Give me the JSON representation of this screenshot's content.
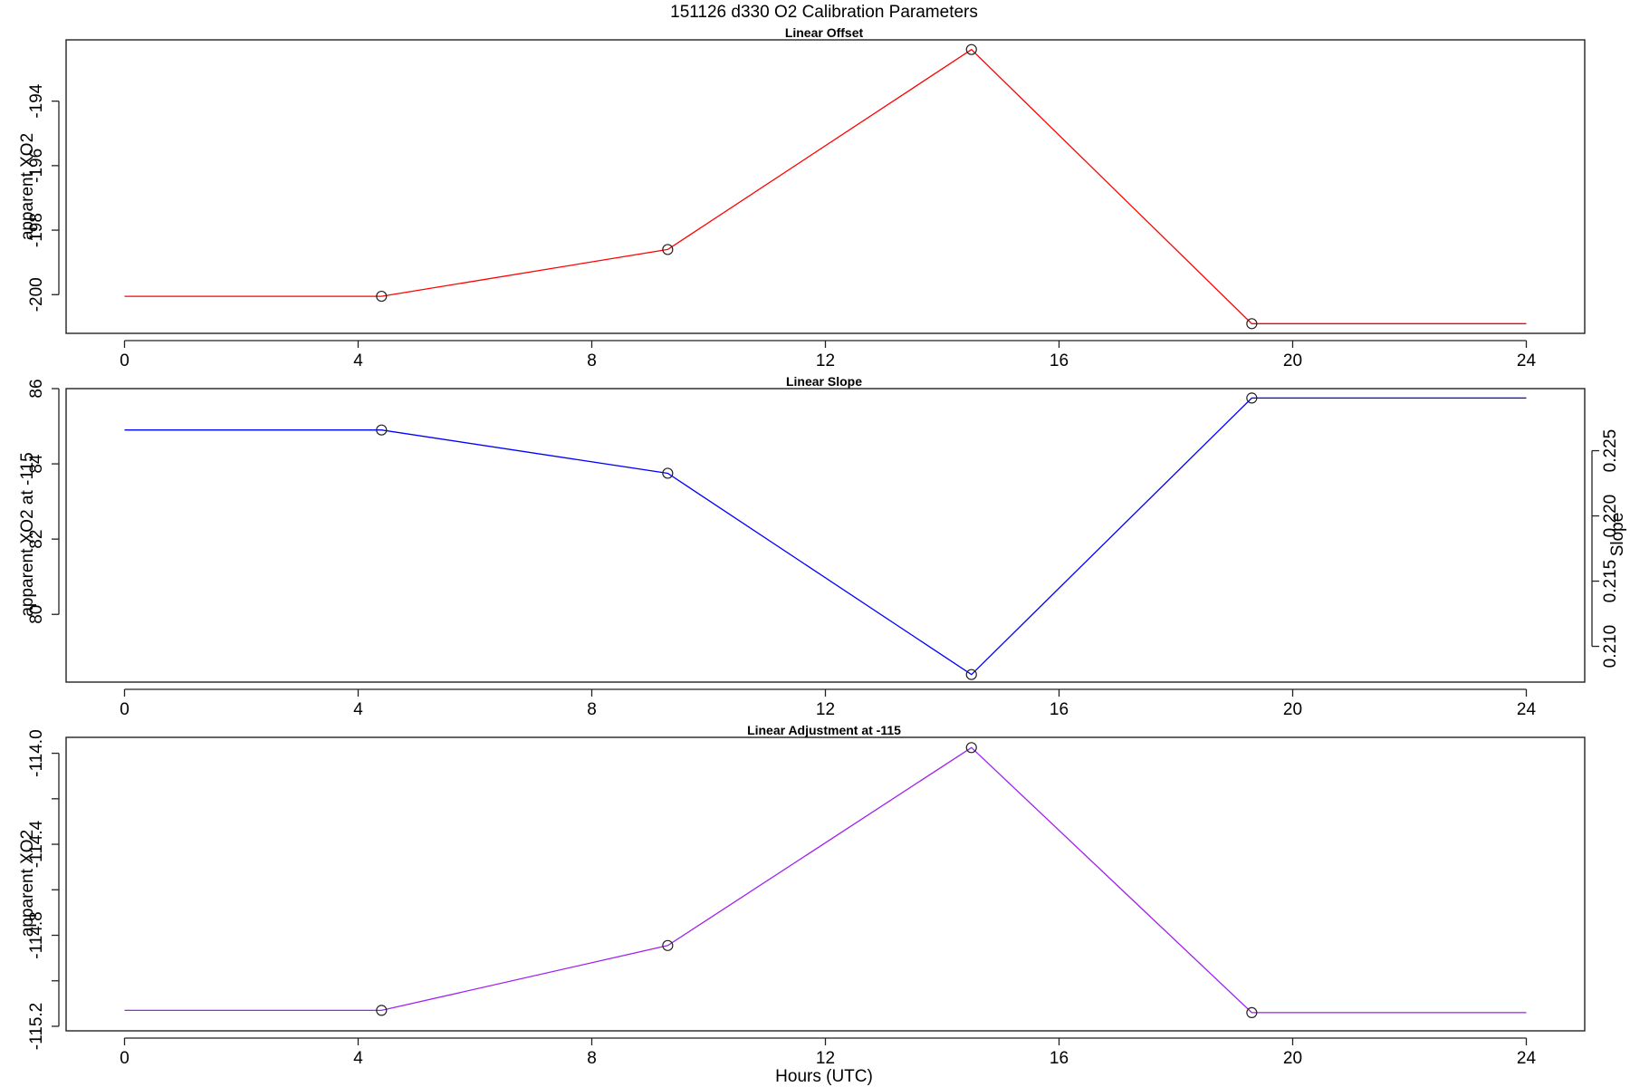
{
  "figure": {
    "title": "151126   d330   O2 Calibration Parameters",
    "xlabel": "Hours (UTC)"
  },
  "chart_data": [
    {
      "type": "line",
      "title": "Linear Offset",
      "xlabel": "",
      "ylabel": "apparent XO2",
      "color": "#ff0000",
      "xlim": [
        -1.0,
        25.0
      ],
      "ylim": [
        -201.2,
        -192.1
      ],
      "x_ticks": [
        0,
        4,
        8,
        12,
        16,
        20,
        24
      ],
      "y_ticks": [
        -200,
        -198,
        -196,
        -194
      ],
      "x": [
        0,
        4.4,
        9.3,
        14.5,
        19.3,
        24
      ],
      "y": [
        -200.05,
        -200.05,
        -198.6,
        -192.4,
        -200.9,
        -200.9
      ],
      "markers": [
        false,
        true,
        true,
        true,
        true,
        false
      ],
      "grid": false
    },
    {
      "type": "line",
      "title": "Linear Slope",
      "xlabel": "",
      "ylabel": "apparent XO2 at -115",
      "y2label": "Slope",
      "color": "#0000ff",
      "xlim": [
        -1.0,
        25.0
      ],
      "ylim": [
        78.2,
        86.0
      ],
      "x_ticks": [
        0,
        4,
        8,
        12,
        16,
        20,
        24
      ],
      "y_ticks": [
        80,
        82,
        84,
        86
      ],
      "y2_ticks": [
        0.21,
        0.215,
        0.22,
        0.225
      ],
      "y2_tick_labels": [
        "0.210",
        "0.215",
        "0.220",
        "0.225"
      ],
      "y2_map": {
        "v1": 0.21,
        "y1": 79.15,
        "v2": 0.225,
        "y2": 84.35
      },
      "x": [
        0,
        4.4,
        9.3,
        14.5,
        19.3,
        24
      ],
      "y": [
        84.9,
        84.9,
        83.75,
        78.4,
        85.75,
        85.75
      ],
      "markers": [
        false,
        true,
        true,
        true,
        true,
        false
      ],
      "grid": false
    },
    {
      "type": "line",
      "title": "Linear Adjustment at -115",
      "xlabel": "",
      "ylabel": "apparent XO2",
      "color": "#a020f0",
      "xlim": [
        -1.0,
        25.0
      ],
      "ylim": [
        -115.22,
        -113.93
      ],
      "x_ticks": [
        0,
        4,
        8,
        12,
        16,
        20,
        24
      ],
      "y_ticks": [
        -115.2,
        -115.0,
        -114.8,
        -114.6,
        -114.4,
        -114.2,
        -114.0
      ],
      "y_tick_labels": [
        "-115.2",
        "",
        "-114.8",
        "",
        "-114.4",
        "",
        "-114.0"
      ],
      "x": [
        0,
        4.4,
        9.3,
        14.5,
        19.3,
        24
      ],
      "y": [
        -115.13,
        -115.13,
        -114.845,
        -113.975,
        -115.14,
        -115.14
      ],
      "markers": [
        false,
        true,
        true,
        true,
        true,
        false
      ],
      "grid": false
    }
  ]
}
